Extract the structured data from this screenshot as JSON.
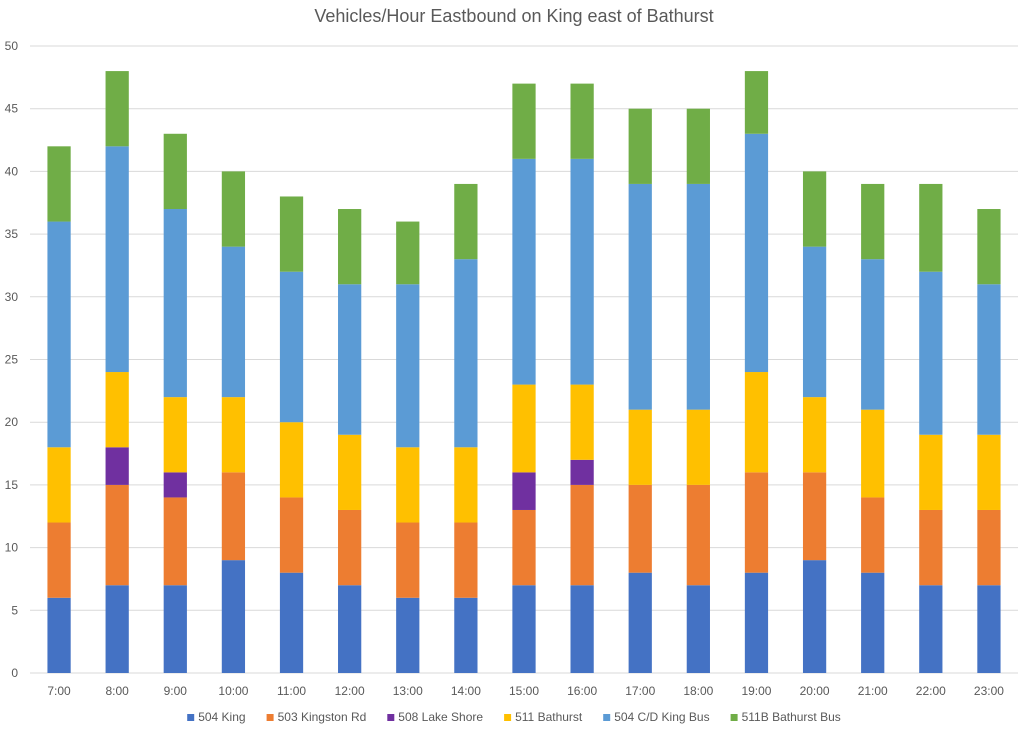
{
  "chart_data": {
    "type": "bar",
    "stacked": true,
    "title": "Vehicles/Hour Eastbound on King east of Bathurst",
    "xlabel": "",
    "ylabel": "",
    "ylim": [
      0,
      50
    ],
    "yticks": [
      0,
      5,
      10,
      15,
      20,
      25,
      30,
      35,
      40,
      45,
      50
    ],
    "grid": true,
    "legend_position": "bottom",
    "categories": [
      "7:00",
      "8:00",
      "9:00",
      "10:00",
      "11:00",
      "12:00",
      "13:00",
      "14:00",
      "15:00",
      "16:00",
      "17:00",
      "18:00",
      "19:00",
      "20:00",
      "21:00",
      "22:00",
      "23:00"
    ],
    "series": [
      {
        "name": "504 King",
        "color": "#4472c4",
        "values": [
          6,
          7,
          7,
          9,
          8,
          7,
          6,
          6,
          7,
          7,
          8,
          7,
          8,
          9,
          8,
          7,
          7
        ]
      },
      {
        "name": "503 Kingston Rd",
        "color": "#ed7d31",
        "values": [
          6,
          8,
          7,
          7,
          6,
          6,
          6,
          6,
          6,
          8,
          7,
          8,
          8,
          7,
          6,
          6,
          6
        ]
      },
      {
        "name": "508 Lake Shore",
        "color": "#7030a0",
        "values": [
          0,
          3,
          2,
          0,
          0,
          0,
          0,
          0,
          3,
          2,
          0,
          0,
          0,
          0,
          0,
          0,
          0
        ]
      },
      {
        "name": "511 Bathurst",
        "color": "#ffc000",
        "values": [
          6,
          6,
          6,
          6,
          6,
          6,
          6,
          6,
          7,
          6,
          6,
          6,
          8,
          6,
          7,
          6,
          6
        ]
      },
      {
        "name": "504 C/D King Bus",
        "color": "#5b9bd5",
        "values": [
          18,
          18,
          15,
          12,
          12,
          12,
          13,
          15,
          18,
          18,
          18,
          18,
          19,
          12,
          12,
          13,
          12
        ]
      },
      {
        "name": "511B Bathurst Bus",
        "color": "#70ad47",
        "values": [
          6,
          6,
          6,
          6,
          6,
          6,
          5,
          6,
          6,
          6,
          6,
          6,
          5,
          6,
          6,
          7,
          6
        ]
      }
    ]
  }
}
